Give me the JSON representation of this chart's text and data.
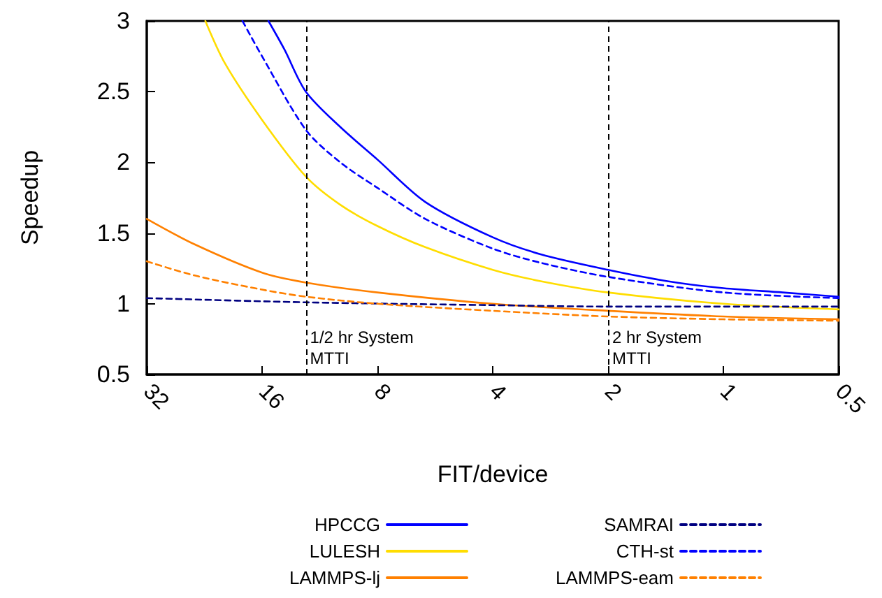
{
  "chart_data": {
    "type": "line",
    "xlabel": "FIT/device",
    "ylabel": "Speedup",
    "log": "x",
    "xlim": [
      32,
      0.5
    ],
    "xticks": [
      32,
      16,
      8,
      4,
      2,
      1,
      0.5
    ],
    "ylim": [
      0.5,
      3
    ],
    "yticks": [
      0.5,
      1,
      1.5,
      2,
      2.5,
      3
    ],
    "grid": false,
    "legend": "bottom",
    "marker": "none",
    "ref_lines": [
      {
        "axis": "x",
        "value": 12.3,
        "label": "1/2 hr System\nMTTI",
        "color": "#000000",
        "line_style": "dashed"
      },
      {
        "axis": "x",
        "value": 2,
        "label": "2 hr System\nMTTI",
        "color": "#000000",
        "line_style": "dashed"
      }
    ],
    "series": [
      {
        "name": "HPCCG",
        "color": "#0000ff",
        "line_style": "solid",
        "x": [
          15.4,
          14,
          12.3,
          10,
          8,
          6,
          4,
          3,
          2,
          1.4,
          1,
          0.7,
          0.5
        ],
        "values": [
          3,
          2.8,
          2.5,
          2.25,
          2.02,
          1.72,
          1.47,
          1.35,
          1.24,
          1.16,
          1.11,
          1.08,
          1.05
        ]
      },
      {
        "name": "LULESH",
        "color": "#ffdd00",
        "line_style": "solid",
        "x": [
          22.5,
          20,
          16,
          12.3,
          10,
          8,
          6,
          4,
          3,
          2,
          1,
          0.5
        ],
        "values": [
          3,
          2.7,
          2.3,
          1.9,
          1.7,
          1.55,
          1.4,
          1.24,
          1.16,
          1.08,
          1.0,
          0.96
        ]
      },
      {
        "name": "LAMMPS-lj",
        "color": "#ff8000",
        "line_style": "solid",
        "x": [
          32,
          24,
          16,
          12.3,
          8,
          4,
          2,
          1,
          0.5
        ],
        "values": [
          1.6,
          1.42,
          1.22,
          1.15,
          1.08,
          1.0,
          0.95,
          0.91,
          0.89
        ]
      },
      {
        "name": "SAMRAI",
        "color": "#000080",
        "line_style": "dashed",
        "x": [
          32,
          12.3,
          4,
          2,
          0.5
        ],
        "values": [
          1.04,
          1.01,
          0.99,
          0.98,
          0.98
        ]
      },
      {
        "name": "CTH-st",
        "color": "#0000ff",
        "line_style": "dashed",
        "x": [
          18,
          16,
          12.3,
          10,
          8,
          6,
          4,
          3,
          2,
          1,
          0.5
        ],
        "values": [
          3,
          2.75,
          2.23,
          2.0,
          1.82,
          1.6,
          1.39,
          1.29,
          1.19,
          1.08,
          1.04
        ]
      },
      {
        "name": "LAMMPS-eam",
        "color": "#ff8000",
        "line_style": "dashed",
        "x": [
          32,
          24,
          16,
          12.3,
          8,
          4,
          2,
          1,
          0.5
        ],
        "values": [
          1.3,
          1.2,
          1.1,
          1.05,
          1.0,
          0.95,
          0.91,
          0.89,
          0.88
        ]
      }
    ]
  }
}
